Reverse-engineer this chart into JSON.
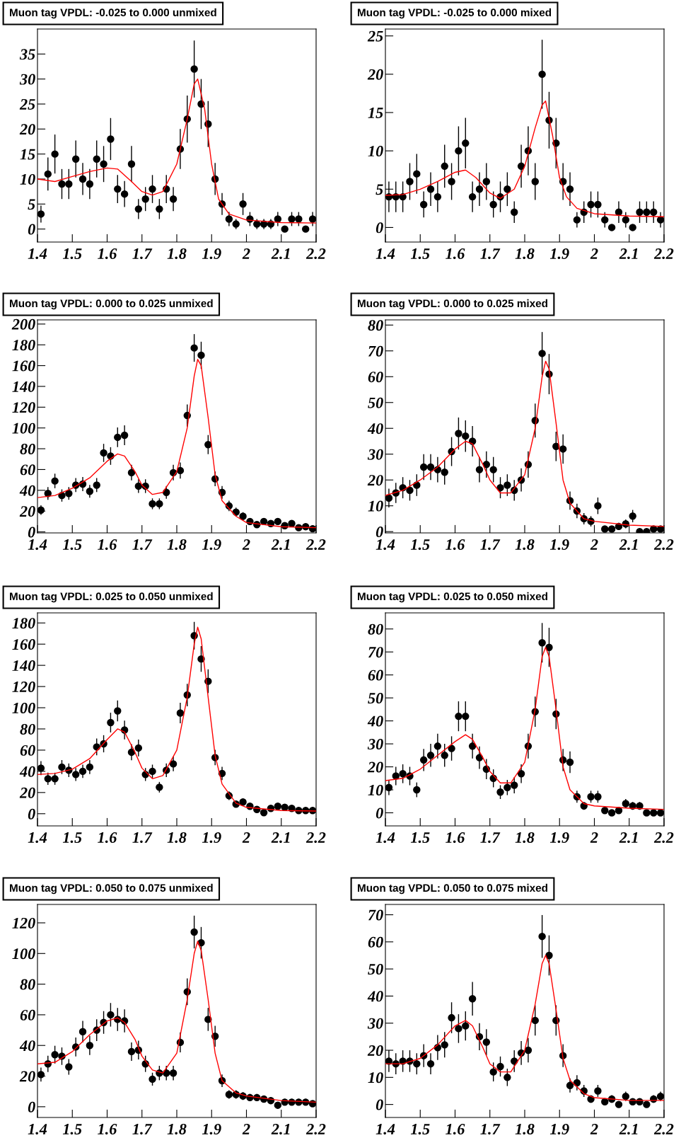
{
  "chart_data": [
    {
      "type": "scatter",
      "title": "Muon tag VPDL: -0.025 to 0.000 unmixed",
      "x": [
        1.41,
        1.43,
        1.45,
        1.47,
        1.49,
        1.51,
        1.53,
        1.55,
        1.57,
        1.59,
        1.61,
        1.63,
        1.65,
        1.67,
        1.69,
        1.71,
        1.73,
        1.75,
        1.77,
        1.79,
        1.81,
        1.83,
        1.85,
        1.87,
        1.89,
        1.91,
        1.93,
        1.95,
        1.97,
        1.99,
        2.01,
        2.03,
        2.05,
        2.07,
        2.09,
        2.11,
        2.13,
        2.15,
        2.17,
        2.19
      ],
      "series": [
        {
          "color": "#000000",
          "marker": "circle",
          "values": [
            3,
            11,
            15,
            9,
            9,
            14,
            10,
            9,
            14,
            13,
            18,
            8,
            7,
            13,
            4,
            6,
            8,
            4,
            8,
            6,
            16,
            22,
            32,
            25,
            21,
            10,
            5,
            2,
            1,
            5,
            2,
            1,
            1,
            1,
            2,
            0,
            2,
            2,
            0,
            2
          ],
          "errors": [
            1.7,
            3.3,
            3.9,
            3,
            3,
            3.7,
            3.2,
            3,
            3.7,
            3.6,
            4.2,
            2.8,
            2.6,
            3.6,
            2,
            2.4,
            2.8,
            2,
            2.8,
            2.4,
            4,
            4.7,
            5.7,
            5,
            4.6,
            3.2,
            2.2,
            1.4,
            1,
            2.2,
            1.4,
            1,
            1,
            1,
            1.4,
            0,
            1.4,
            1.4,
            0,
            1.4
          ]
        },
        {
          "type": "line",
          "color": "#ff0000",
          "x": [
            1.4,
            1.45,
            1.5,
            1.55,
            1.6,
            1.63,
            1.67,
            1.7,
            1.73,
            1.76,
            1.8,
            1.83,
            1.85,
            1.86,
            1.88,
            1.9,
            1.92,
            1.95,
            2.0,
            2.1,
            2.2
          ],
          "values": [
            10,
            9.5,
            10.5,
            11.5,
            12.2,
            12,
            9.5,
            7.5,
            6.8,
            7.5,
            13,
            22,
            29,
            30,
            24,
            13,
            6,
            3,
            1.8,
            1.3,
            1.2
          ]
        }
      ],
      "xlim": [
        1.4,
        2.2
      ],
      "xticks": [
        1.4,
        1.5,
        1.6,
        1.7,
        1.8,
        1.9,
        2,
        2.1,
        2.2
      ],
      "ylim": [
        -2.6,
        40
      ],
      "yticks": [
        0,
        5,
        10,
        15,
        20,
        25,
        30,
        35
      ]
    },
    {
      "type": "scatter",
      "title": "Muon tag VPDL: -0.025 to 0.000 mixed",
      "x": [
        1.41,
        1.43,
        1.45,
        1.47,
        1.49,
        1.51,
        1.53,
        1.55,
        1.57,
        1.59,
        1.61,
        1.63,
        1.65,
        1.67,
        1.69,
        1.71,
        1.73,
        1.75,
        1.77,
        1.79,
        1.81,
        1.83,
        1.85,
        1.87,
        1.89,
        1.91,
        1.93,
        1.95,
        1.97,
        1.99,
        2.01,
        2.03,
        2.05,
        2.07,
        2.09,
        2.11,
        2.13,
        2.15,
        2.17,
        2.19
      ],
      "series": [
        {
          "color": "#000000",
          "marker": "circle",
          "values": [
            4,
            4,
            4,
            6,
            7,
            3,
            5,
            4,
            8,
            6,
            10,
            11,
            4,
            5,
            6,
            3,
            4,
            5,
            2,
            8,
            10,
            6,
            20,
            14,
            11,
            6,
            5,
            1,
            2,
            3,
            3,
            1,
            0,
            2,
            1,
            0,
            2,
            2,
            2,
            1
          ],
          "errors": [
            2,
            2,
            2,
            2.4,
            2.6,
            1.7,
            2.2,
            2,
            2.8,
            2.4,
            3.2,
            3.3,
            2,
            2.2,
            2.4,
            1.7,
            2,
            2.2,
            1.4,
            2.8,
            3.2,
            2.4,
            4.5,
            3.7,
            3.3,
            2.4,
            2.2,
            1,
            1.4,
            1.7,
            1.7,
            1,
            0,
            1.4,
            1,
            0,
            1.4,
            1.4,
            1.4,
            1
          ]
        },
        {
          "type": "line",
          "color": "#ff0000",
          "x": [
            1.4,
            1.45,
            1.5,
            1.55,
            1.6,
            1.63,
            1.66,
            1.7,
            1.73,
            1.77,
            1.8,
            1.83,
            1.85,
            1.86,
            1.88,
            1.9,
            1.92,
            1.95,
            2.0,
            2.1,
            2.2
          ],
          "values": [
            4.2,
            4.3,
            5,
            6,
            7.2,
            7.5,
            6.5,
            4.5,
            3.8,
            5,
            8,
            13,
            16,
            16.5,
            12,
            6.5,
            4,
            2.5,
            1.8,
            1.5,
            1.4
          ]
        }
      ],
      "xlim": [
        1.4,
        2.2
      ],
      "xticks": [
        1.4,
        1.5,
        1.6,
        1.7,
        1.8,
        1.9,
        2,
        2.1,
        2.2
      ],
      "ylim": [
        -1.9,
        25.9
      ],
      "yticks": [
        0,
        5,
        10,
        15,
        20,
        25
      ]
    },
    {
      "type": "scatter",
      "title": "Muon tag VPDL: 0.000 to 0.025 unmixed",
      "x": [
        1.41,
        1.43,
        1.45,
        1.47,
        1.49,
        1.51,
        1.53,
        1.55,
        1.57,
        1.59,
        1.61,
        1.63,
        1.65,
        1.67,
        1.69,
        1.71,
        1.73,
        1.75,
        1.77,
        1.79,
        1.81,
        1.83,
        1.85,
        1.87,
        1.89,
        1.91,
        1.93,
        1.95,
        1.97,
        1.99,
        2.01,
        2.03,
        2.05,
        2.07,
        2.09,
        2.11,
        2.13,
        2.15,
        2.17,
        2.19
      ],
      "series": [
        {
          "color": "#000000",
          "marker": "circle",
          "values": [
            21,
            37,
            49,
            35,
            37,
            45,
            46,
            39,
            45,
            76,
            73,
            91,
            93,
            57,
            44,
            44,
            27,
            27,
            38,
            57,
            59,
            112,
            177,
            170,
            84,
            51,
            38,
            25,
            19,
            15,
            10,
            7,
            10,
            8,
            10,
            6,
            8,
            4,
            5,
            3
          ],
          "errors": [
            4.6,
            6.1,
            7,
            5.9,
            6.1,
            6.7,
            6.8,
            6.2,
            6.7,
            8.7,
            8.5,
            9.5,
            9.6,
            7.5,
            6.6,
            6.6,
            5.2,
            5.2,
            6.2,
            7.5,
            7.7,
            10.6,
            13.3,
            13,
            9.2,
            7.1,
            6.2,
            5,
            4.4,
            3.9,
            3.2,
            2.6,
            3.2,
            2.8,
            3.2,
            2.4,
            2.8,
            2,
            2.2,
            1.7
          ]
        },
        {
          "type": "line",
          "color": "#ff0000",
          "x": [
            1.4,
            1.45,
            1.5,
            1.55,
            1.6,
            1.63,
            1.65,
            1.68,
            1.7,
            1.73,
            1.76,
            1.8,
            1.83,
            1.85,
            1.86,
            1.87,
            1.89,
            1.91,
            1.93,
            1.97,
            2.0,
            2.1,
            2.2
          ],
          "values": [
            33,
            35,
            42,
            52,
            68,
            75,
            73,
            58,
            45,
            36,
            38,
            58,
            100,
            150,
            166,
            160,
            110,
            55,
            30,
            15,
            9,
            5,
            4
          ]
        }
      ],
      "xlim": [
        1.4,
        2.2
      ],
      "xticks": [
        1.4,
        1.5,
        1.6,
        1.7,
        1.8,
        1.9,
        2,
        2.1,
        2.2
      ],
      "ylim": [
        -1,
        204
      ],
      "yticks": [
        0,
        20,
        40,
        60,
        80,
        100,
        120,
        140,
        160,
        180,
        200
      ]
    },
    {
      "type": "scatter",
      "title": "Muon tag VPDL: 0.000 to 0.025 mixed",
      "x": [
        1.41,
        1.43,
        1.45,
        1.47,
        1.49,
        1.51,
        1.53,
        1.55,
        1.57,
        1.59,
        1.61,
        1.63,
        1.65,
        1.67,
        1.69,
        1.71,
        1.73,
        1.75,
        1.77,
        1.79,
        1.81,
        1.83,
        1.85,
        1.87,
        1.89,
        1.91,
        1.93,
        1.95,
        1.97,
        1.99,
        2.01,
        2.03,
        2.05,
        2.07,
        2.09,
        2.11,
        2.13,
        2.15,
        2.17,
        2.19
      ],
      "series": [
        {
          "color": "#000000",
          "marker": "circle",
          "values": [
            13,
            15,
            17,
            16,
            18,
            25,
            25,
            24,
            23,
            31,
            38,
            37,
            35,
            24,
            26,
            24,
            17,
            18,
            16,
            20,
            26,
            43,
            69,
            61,
            33,
            32,
            12,
            8,
            5,
            4,
            10,
            1,
            1,
            2,
            3,
            6,
            0,
            0,
            1,
            1
          ],
          "errors": [
            3.6,
            3.9,
            4.1,
            4,
            4.2,
            5,
            5,
            4.9,
            4.8,
            5.6,
            6.2,
            6.1,
            5.9,
            4.9,
            5.1,
            4.9,
            4.1,
            4.2,
            4,
            4.5,
            5.1,
            6.6,
            8.3,
            7.8,
            5.7,
            5.7,
            3.5,
            2.8,
            2.2,
            2,
            3.2,
            1,
            1,
            1.4,
            1.7,
            2.4,
            0,
            0,
            1,
            1
          ]
        },
        {
          "type": "line",
          "color": "#ff0000",
          "x": [
            1.4,
            1.45,
            1.5,
            1.55,
            1.6,
            1.63,
            1.65,
            1.68,
            1.7,
            1.73,
            1.76,
            1.8,
            1.83,
            1.85,
            1.86,
            1.87,
            1.89,
            1.91,
            1.93,
            1.97,
            2.0,
            2.1,
            2.2
          ],
          "values": [
            14,
            16,
            20,
            25,
            32,
            35,
            34,
            26,
            20,
            15,
            15,
            22,
            40,
            60,
            66,
            63,
            42,
            20,
            11,
            5,
            4,
            2.5,
            2
          ]
        }
      ],
      "xlim": [
        1.4,
        2.2
      ],
      "xticks": [
        1.4,
        1.5,
        1.6,
        1.7,
        1.8,
        1.9,
        2,
        2.1,
        2.2
      ],
      "ylim": [
        -0.5,
        82
      ],
      "yticks": [
        0,
        10,
        20,
        30,
        40,
        50,
        60,
        70,
        80
      ]
    },
    {
      "type": "scatter",
      "title": "Muon tag VPDL: 0.025 to 0.050 unmixed",
      "x": [
        1.41,
        1.43,
        1.45,
        1.47,
        1.49,
        1.51,
        1.53,
        1.55,
        1.57,
        1.59,
        1.61,
        1.63,
        1.65,
        1.67,
        1.69,
        1.71,
        1.73,
        1.75,
        1.77,
        1.79,
        1.81,
        1.83,
        1.85,
        1.87,
        1.89,
        1.91,
        1.93,
        1.95,
        1.97,
        1.99,
        2.01,
        2.03,
        2.05,
        2.07,
        2.09,
        2.11,
        2.13,
        2.15,
        2.17,
        2.19
      ],
      "series": [
        {
          "color": "#000000",
          "marker": "circle",
          "values": [
            43,
            33,
            33,
            44,
            41,
            37,
            40,
            44,
            63,
            66,
            86,
            97,
            79,
            58,
            62,
            37,
            40,
            25,
            41,
            47,
            95,
            112,
            168,
            146,
            125,
            53,
            38,
            17,
            9,
            11,
            7,
            4,
            1,
            5,
            7,
            6,
            5,
            3,
            3,
            3
          ],
          "errors": [
            6.6,
            5.7,
            5.7,
            6.6,
            6.4,
            6.1,
            6.3,
            6.6,
            7.9,
            8.1,
            9.3,
            9.8,
            8.9,
            7.6,
            7.9,
            6.1,
            6.3,
            5,
            6.4,
            6.9,
            9.7,
            10.6,
            13,
            12.1,
            11.2,
            7.3,
            6.2,
            4.1,
            3,
            3.3,
            2.6,
            2,
            1,
            2.2,
            2.6,
            2.4,
            2.2,
            1.7,
            1.7,
            1.7
          ]
        },
        {
          "type": "line",
          "color": "#ff0000",
          "x": [
            1.4,
            1.45,
            1.5,
            1.55,
            1.6,
            1.63,
            1.65,
            1.68,
            1.7,
            1.73,
            1.76,
            1.8,
            1.83,
            1.85,
            1.86,
            1.87,
            1.89,
            1.91,
            1.93,
            1.97,
            2.0,
            2.1,
            2.2
          ],
          "values": [
            37,
            38,
            42,
            52,
            70,
            80,
            77,
            58,
            43,
            33,
            36,
            60,
            110,
            160,
            176,
            165,
            110,
            55,
            28,
            10,
            6,
            3,
            2.5
          ]
        }
      ],
      "xlim": [
        1.4,
        2.2
      ],
      "xticks": [
        1.4,
        1.5,
        1.6,
        1.7,
        1.8,
        1.9,
        2,
        2.1,
        2.2
      ],
      "ylim": [
        -11.5,
        189.5
      ],
      "yticks": [
        0,
        20,
        40,
        60,
        80,
        100,
        120,
        140,
        160,
        180
      ]
    },
    {
      "type": "scatter",
      "title": "Muon tag VPDL: 0.025 to 0.050 mixed",
      "x": [
        1.41,
        1.43,
        1.45,
        1.47,
        1.49,
        1.51,
        1.53,
        1.55,
        1.57,
        1.59,
        1.61,
        1.63,
        1.65,
        1.67,
        1.69,
        1.71,
        1.73,
        1.75,
        1.77,
        1.79,
        1.81,
        1.83,
        1.85,
        1.87,
        1.89,
        1.91,
        1.93,
        1.95,
        1.97,
        1.99,
        2.01,
        2.03,
        2.05,
        2.07,
        2.09,
        2.11,
        2.13,
        2.15,
        2.17,
        2.19
      ],
      "series": [
        {
          "color": "#000000",
          "marker": "circle",
          "values": [
            11,
            16,
            17,
            16,
            10,
            23,
            25,
            29,
            25,
            28,
            42,
            42,
            29,
            24,
            19,
            15,
            9,
            11,
            12,
            17,
            29,
            44,
            74,
            72,
            43,
            23,
            22,
            7,
            3,
            7,
            7,
            1,
            0,
            1,
            4,
            3,
            3,
            0,
            0,
            0
          ],
          "errors": [
            3.3,
            4,
            4.1,
            4,
            3.2,
            4.8,
            5,
            5.4,
            5,
            5.3,
            6.5,
            6.5,
            5.4,
            4.9,
            4.4,
            3.9,
            3,
            3.3,
            3.5,
            4.1,
            5.4,
            6.6,
            8.6,
            8.5,
            6.6,
            4.8,
            4.7,
            2.6,
            1.7,
            2.6,
            2.6,
            1,
            0,
            1,
            2,
            1.7,
            1.7,
            0,
            0,
            0
          ]
        },
        {
          "type": "line",
          "color": "#ff0000",
          "x": [
            1.4,
            1.45,
            1.5,
            1.55,
            1.6,
            1.63,
            1.65,
            1.68,
            1.7,
            1.73,
            1.76,
            1.8,
            1.83,
            1.85,
            1.86,
            1.87,
            1.89,
            1.91,
            1.93,
            1.97,
            2.0,
            2.1,
            2.2
          ],
          "values": [
            14,
            15,
            19,
            25,
            31,
            34,
            32,
            24,
            18,
            13,
            13,
            22,
            45,
            68,
            72,
            68,
            45,
            20,
            10,
            4,
            3,
            2,
            1.5
          ]
        }
      ],
      "xlim": [
        1.4,
        2.2
      ],
      "xticks": [
        1.4,
        1.5,
        1.6,
        1.7,
        1.8,
        1.9,
        2,
        2.1,
        2.2
      ],
      "ylim": [
        -5.7,
        87
      ],
      "yticks": [
        0,
        10,
        20,
        30,
        40,
        50,
        60,
        70,
        80
      ]
    },
    {
      "type": "scatter",
      "title": "Muon tag VPDL: 0.050 to 0.075 unmixed",
      "x": [
        1.41,
        1.43,
        1.45,
        1.47,
        1.49,
        1.51,
        1.53,
        1.55,
        1.57,
        1.59,
        1.61,
        1.63,
        1.65,
        1.67,
        1.69,
        1.71,
        1.73,
        1.75,
        1.77,
        1.79,
        1.81,
        1.83,
        1.85,
        1.87,
        1.89,
        1.91,
        1.93,
        1.95,
        1.97,
        1.99,
        2.01,
        2.03,
        2.05,
        2.07,
        2.09,
        2.11,
        2.13,
        2.15,
        2.17,
        2.19
      ],
      "series": [
        {
          "color": "#000000",
          "marker": "circle",
          "values": [
            21,
            28,
            34,
            33,
            26,
            39,
            49,
            40,
            50,
            55,
            60,
            57,
            56,
            36,
            37,
            28,
            18,
            22,
            22,
            22,
            42,
            75,
            114,
            107,
            57,
            46,
            17,
            8,
            8,
            7,
            6,
            6,
            5,
            4,
            1,
            3,
            3,
            3,
            3,
            2
          ],
          "errors": [
            4.6,
            5.3,
            5.8,
            5.7,
            5.1,
            6.2,
            7,
            6.3,
            7.1,
            7.4,
            7.7,
            7.5,
            7.5,
            6,
            6.1,
            5.3,
            4.2,
            4.7,
            4.7,
            4.7,
            6.5,
            8.7,
            10.7,
            10.3,
            7.5,
            6.8,
            4.1,
            2.8,
            2.8,
            2.6,
            2.4,
            2.4,
            2.2,
            2,
            1,
            1.7,
            1.7,
            1.7,
            1.7,
            1.4
          ]
        },
        {
          "type": "line",
          "color": "#ff0000",
          "x": [
            1.4,
            1.45,
            1.5,
            1.55,
            1.6,
            1.63,
            1.65,
            1.68,
            1.7,
            1.73,
            1.76,
            1.8,
            1.83,
            1.85,
            1.86,
            1.87,
            1.89,
            1.91,
            1.93,
            1.97,
            2.0,
            2.1,
            2.2
          ],
          "values": [
            28,
            29,
            36,
            47,
            56,
            58,
            55,
            44,
            33,
            24,
            22,
            35,
            70,
            100,
            108,
            102,
            70,
            35,
            17,
            9,
            7,
            4,
            3
          ]
        }
      ],
      "xlim": [
        1.4,
        2.2
      ],
      "xticks": [
        1.4,
        1.5,
        1.6,
        1.7,
        1.8,
        1.9,
        2,
        2.1,
        2.2
      ],
      "ylim": [
        -7,
        132
      ],
      "yticks": [
        0,
        20,
        40,
        60,
        80,
        100,
        120
      ]
    },
    {
      "type": "scatter",
      "title": "Muon tag VPDL: 0.050 to 0.075 mixed",
      "x": [
        1.41,
        1.43,
        1.45,
        1.47,
        1.49,
        1.51,
        1.53,
        1.55,
        1.57,
        1.59,
        1.61,
        1.63,
        1.65,
        1.67,
        1.69,
        1.71,
        1.73,
        1.75,
        1.77,
        1.79,
        1.81,
        1.83,
        1.85,
        1.87,
        1.89,
        1.91,
        1.93,
        1.95,
        1.97,
        1.99,
        2.01,
        2.03,
        2.05,
        2.07,
        2.09,
        2.11,
        2.13,
        2.15,
        2.17,
        2.19
      ],
      "series": [
        {
          "color": "#000000",
          "marker": "circle",
          "values": [
            16,
            15,
            16,
            16,
            15,
            18,
            15,
            21,
            22,
            32,
            28,
            29,
            39,
            25,
            23,
            12,
            14,
            10,
            16,
            19,
            20,
            31,
            62,
            55,
            31,
            18,
            7,
            8,
            5,
            2,
            5,
            1,
            2,
            0,
            3,
            1,
            1,
            0,
            2,
            3
          ],
          "errors": [
            4,
            3.9,
            4,
            4,
            3.9,
            4.2,
            3.9,
            4.6,
            4.7,
            5.7,
            5.3,
            5.4,
            6.2,
            5,
            4.8,
            3.5,
            3.7,
            3.2,
            4,
            4.4,
            4.5,
            5.6,
            7.9,
            7.4,
            5.6,
            4.2,
            2.6,
            2.8,
            2.2,
            1.4,
            2.2,
            1,
            1.4,
            0,
            1.7,
            1,
            1,
            0,
            1.4,
            1.7
          ]
        },
        {
          "type": "line",
          "color": "#ff0000",
          "x": [
            1.4,
            1.45,
            1.5,
            1.55,
            1.6,
            1.63,
            1.65,
            1.68,
            1.7,
            1.73,
            1.76,
            1.8,
            1.83,
            1.85,
            1.86,
            1.87,
            1.89,
            1.91,
            1.93,
            1.97,
            2.0,
            2.1,
            2.2
          ],
          "values": [
            15,
            15,
            17,
            22,
            29,
            31,
            29,
            21,
            15,
            12,
            12,
            20,
            37,
            52,
            55,
            52,
            35,
            17,
            9,
            4,
            2.5,
            1.5,
            1.5
          ]
        }
      ],
      "xlim": [
        1.4,
        2.2
      ],
      "xticks": [
        1.4,
        1.5,
        1.6,
        1.7,
        1.8,
        1.9,
        2,
        2.1,
        2.2
      ],
      "ylim": [
        -4.8,
        73.8
      ],
      "yticks": [
        0,
        10,
        20,
        30,
        40,
        50,
        60,
        70
      ]
    }
  ]
}
